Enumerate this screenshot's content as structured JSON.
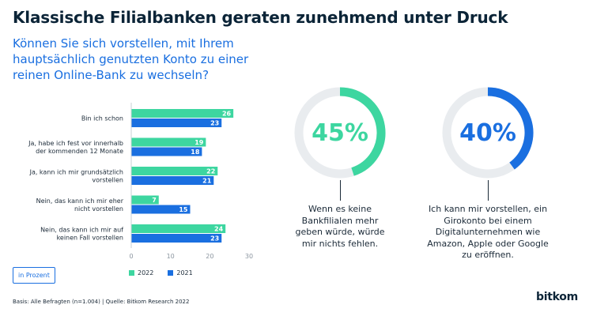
{
  "title": "Klassische Filialbanken geraten zunehmend unter Druck",
  "question": "Können Sie sich vorstellen, mit Ihrem hauptsächlich genutzten Konto zu einer reinen Online-Bank zu wechseln?",
  "unit_label": "in Prozent",
  "source": "Basis: Alle Befragten (n=1.004) | Quelle: Bitkom Research 2022",
  "logo": "bitkom",
  "colors": {
    "series_2022": "#3dd6a0",
    "series_2021": "#1a6fe0",
    "dark": "#0b2437",
    "track": "#e9ecef"
  },
  "chart_data": [
    {
      "type": "bar",
      "orientation": "horizontal",
      "categories": [
        [
          "Bin ich schon"
        ],
        [
          "Ja, habe ich fest vor innerhalb",
          "der kommenden 12 Monate"
        ],
        [
          "Ja, kann ich mir grundsätzlich",
          "vorstellen"
        ],
        [
          "Nein, das kann ich mir eher",
          "nicht vorstellen"
        ],
        [
          "Nein, das kann ich mir auf",
          "keinen Fall vorstellen"
        ]
      ],
      "series": [
        {
          "name": "2022",
          "color": "#3dd6a0",
          "values": [
            26,
            19,
            22,
            7,
            24
          ]
        },
        {
          "name": "2021",
          "color": "#1a6fe0",
          "values": [
            23,
            18,
            21,
            15,
            23
          ]
        }
      ],
      "xlim": [
        0,
        30
      ],
      "xticks": [
        0,
        10,
        20,
        30
      ],
      "grid": false,
      "legend": "bottom"
    },
    {
      "type": "pie",
      "variant": "donut",
      "value": 45,
      "value_label": "45%",
      "color": "#3dd6a0",
      "caption": "Wenn es keine Bankfilialen mehr geben würde, würde mir nichts fehlen."
    },
    {
      "type": "pie",
      "variant": "donut",
      "value": 40,
      "value_label": "40%",
      "color": "#1a6fe0",
      "caption": "Ich kann mir vorstellen, ein Girokonto bei einem Digitalunternehmen wie Amazon, Apple oder Google zu eröffnen."
    }
  ]
}
